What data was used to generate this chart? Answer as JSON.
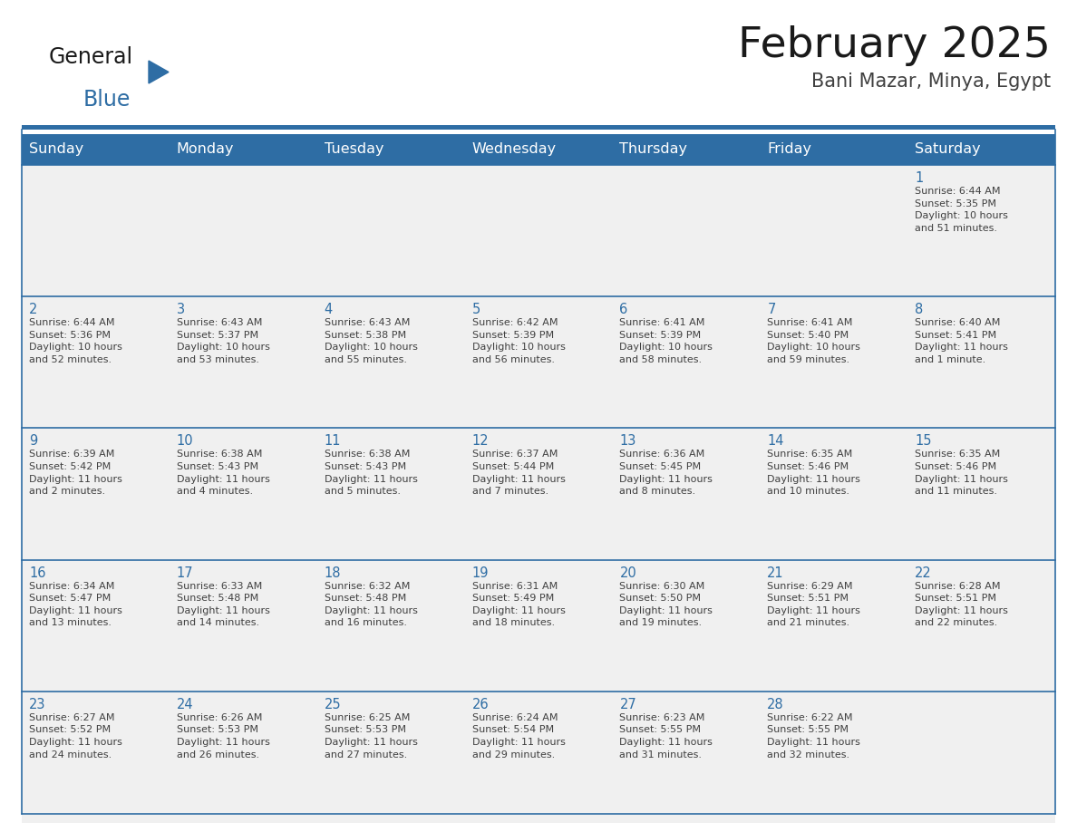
{
  "title": "February 2025",
  "subtitle": "Bani Mazar, Minya, Egypt",
  "days_of_week": [
    "Sunday",
    "Monday",
    "Tuesday",
    "Wednesday",
    "Thursday",
    "Friday",
    "Saturday"
  ],
  "header_bg": "#2E6DA4",
  "header_text": "#FFFFFF",
  "cell_bg_light": "#F0F0F0",
  "cell_bg_white": "#FFFFFF",
  "grid_line_color": "#2E6DA4",
  "day_num_color": "#2E6DA4",
  "cell_text_color": "#404040",
  "title_color": "#1a1a1a",
  "subtitle_color": "#404040",
  "logo_general_color": "#1a1a1a",
  "logo_blue_color": "#2E6DA4",
  "logo_triangle_color": "#2E6DA4",
  "weeks": [
    [
      {
        "day": null,
        "info": null
      },
      {
        "day": null,
        "info": null
      },
      {
        "day": null,
        "info": null
      },
      {
        "day": null,
        "info": null
      },
      {
        "day": null,
        "info": null
      },
      {
        "day": null,
        "info": null
      },
      {
        "day": 1,
        "info": "Sunrise: 6:44 AM\nSunset: 5:35 PM\nDaylight: 10 hours\nand 51 minutes."
      }
    ],
    [
      {
        "day": 2,
        "info": "Sunrise: 6:44 AM\nSunset: 5:36 PM\nDaylight: 10 hours\nand 52 minutes."
      },
      {
        "day": 3,
        "info": "Sunrise: 6:43 AM\nSunset: 5:37 PM\nDaylight: 10 hours\nand 53 minutes."
      },
      {
        "day": 4,
        "info": "Sunrise: 6:43 AM\nSunset: 5:38 PM\nDaylight: 10 hours\nand 55 minutes."
      },
      {
        "day": 5,
        "info": "Sunrise: 6:42 AM\nSunset: 5:39 PM\nDaylight: 10 hours\nand 56 minutes."
      },
      {
        "day": 6,
        "info": "Sunrise: 6:41 AM\nSunset: 5:39 PM\nDaylight: 10 hours\nand 58 minutes."
      },
      {
        "day": 7,
        "info": "Sunrise: 6:41 AM\nSunset: 5:40 PM\nDaylight: 10 hours\nand 59 minutes."
      },
      {
        "day": 8,
        "info": "Sunrise: 6:40 AM\nSunset: 5:41 PM\nDaylight: 11 hours\nand 1 minute."
      }
    ],
    [
      {
        "day": 9,
        "info": "Sunrise: 6:39 AM\nSunset: 5:42 PM\nDaylight: 11 hours\nand 2 minutes."
      },
      {
        "day": 10,
        "info": "Sunrise: 6:38 AM\nSunset: 5:43 PM\nDaylight: 11 hours\nand 4 minutes."
      },
      {
        "day": 11,
        "info": "Sunrise: 6:38 AM\nSunset: 5:43 PM\nDaylight: 11 hours\nand 5 minutes."
      },
      {
        "day": 12,
        "info": "Sunrise: 6:37 AM\nSunset: 5:44 PM\nDaylight: 11 hours\nand 7 minutes."
      },
      {
        "day": 13,
        "info": "Sunrise: 6:36 AM\nSunset: 5:45 PM\nDaylight: 11 hours\nand 8 minutes."
      },
      {
        "day": 14,
        "info": "Sunrise: 6:35 AM\nSunset: 5:46 PM\nDaylight: 11 hours\nand 10 minutes."
      },
      {
        "day": 15,
        "info": "Sunrise: 6:35 AM\nSunset: 5:46 PM\nDaylight: 11 hours\nand 11 minutes."
      }
    ],
    [
      {
        "day": 16,
        "info": "Sunrise: 6:34 AM\nSunset: 5:47 PM\nDaylight: 11 hours\nand 13 minutes."
      },
      {
        "day": 17,
        "info": "Sunrise: 6:33 AM\nSunset: 5:48 PM\nDaylight: 11 hours\nand 14 minutes."
      },
      {
        "day": 18,
        "info": "Sunrise: 6:32 AM\nSunset: 5:48 PM\nDaylight: 11 hours\nand 16 minutes."
      },
      {
        "day": 19,
        "info": "Sunrise: 6:31 AM\nSunset: 5:49 PM\nDaylight: 11 hours\nand 18 minutes."
      },
      {
        "day": 20,
        "info": "Sunrise: 6:30 AM\nSunset: 5:50 PM\nDaylight: 11 hours\nand 19 minutes."
      },
      {
        "day": 21,
        "info": "Sunrise: 6:29 AM\nSunset: 5:51 PM\nDaylight: 11 hours\nand 21 minutes."
      },
      {
        "day": 22,
        "info": "Sunrise: 6:28 AM\nSunset: 5:51 PM\nDaylight: 11 hours\nand 22 minutes."
      }
    ],
    [
      {
        "day": 23,
        "info": "Sunrise: 6:27 AM\nSunset: 5:52 PM\nDaylight: 11 hours\nand 24 minutes."
      },
      {
        "day": 24,
        "info": "Sunrise: 6:26 AM\nSunset: 5:53 PM\nDaylight: 11 hours\nand 26 minutes."
      },
      {
        "day": 25,
        "info": "Sunrise: 6:25 AM\nSunset: 5:53 PM\nDaylight: 11 hours\nand 27 minutes."
      },
      {
        "day": 26,
        "info": "Sunrise: 6:24 AM\nSunset: 5:54 PM\nDaylight: 11 hours\nand 29 minutes."
      },
      {
        "day": 27,
        "info": "Sunrise: 6:23 AM\nSunset: 5:55 PM\nDaylight: 11 hours\nand 31 minutes."
      },
      {
        "day": 28,
        "info": "Sunrise: 6:22 AM\nSunset: 5:55 PM\nDaylight: 11 hours\nand 32 minutes."
      },
      {
        "day": null,
        "info": null
      }
    ]
  ]
}
